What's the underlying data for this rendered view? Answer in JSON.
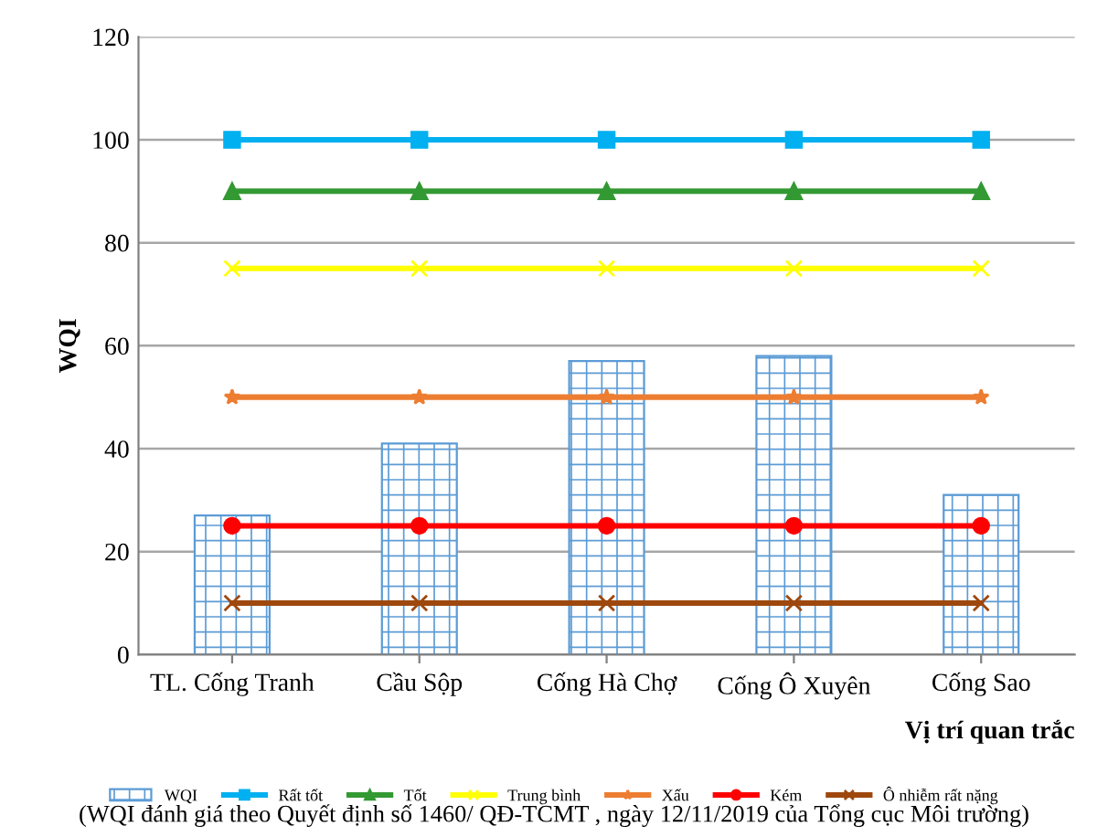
{
  "chart_data": {
    "type": "bar",
    "xlabel": "Vị trí quan trắc",
    "ylabel": "WQI",
    "categories": [
      "TL. Cống Tranh",
      "Cầu Sộp",
      "Cống Hà Chợ",
      "Cống Ô Xuyên",
      "Cống Sao"
    ],
    "ylim": [
      0,
      120
    ],
    "yticks": [
      0,
      20,
      40,
      60,
      80,
      100,
      120
    ],
    "grid": "y",
    "legend": "bottom",
    "series": [
      {
        "name": "WQI",
        "color": "#5b9bd5",
        "values": [
          27,
          41,
          57,
          58,
          31
        ]
      },
      {
        "name": "Rất tốt",
        "type": "line",
        "color": "#00b0f0",
        "marker": "square",
        "values": [
          100,
          100,
          100,
          100,
          100
        ]
      },
      {
        "name": "Tốt",
        "type": "line",
        "color": "#339933",
        "marker": "triangle",
        "values": [
          90,
          90,
          90,
          90,
          90
        ]
      },
      {
        "name": "Trung bình",
        "type": "line",
        "color": "#ffff00",
        "marker": "cross",
        "values": [
          75,
          75,
          75,
          75,
          75
        ]
      },
      {
        "name": "Xấu",
        "type": "line",
        "color": "#ed7d31",
        "marker": "star",
        "values": [
          50,
          50,
          50,
          50,
          50
        ]
      },
      {
        "name": "Kém",
        "type": "line",
        "color": "#ff0000",
        "marker": "circle",
        "values": [
          25,
          25,
          25,
          25,
          25
        ]
      },
      {
        "name": "Ô nhiễm rất nặng",
        "type": "line",
        "color": "#9e480e",
        "marker": "cross",
        "values": [
          10,
          10,
          10,
          10,
          10
        ]
      }
    ],
    "annotations": [
      "(WQI đánh giá theo Quyết định số 1460/ QĐ-TCMT , ngày 12/11/2019 của Tổng cục Môi trường)"
    ]
  }
}
